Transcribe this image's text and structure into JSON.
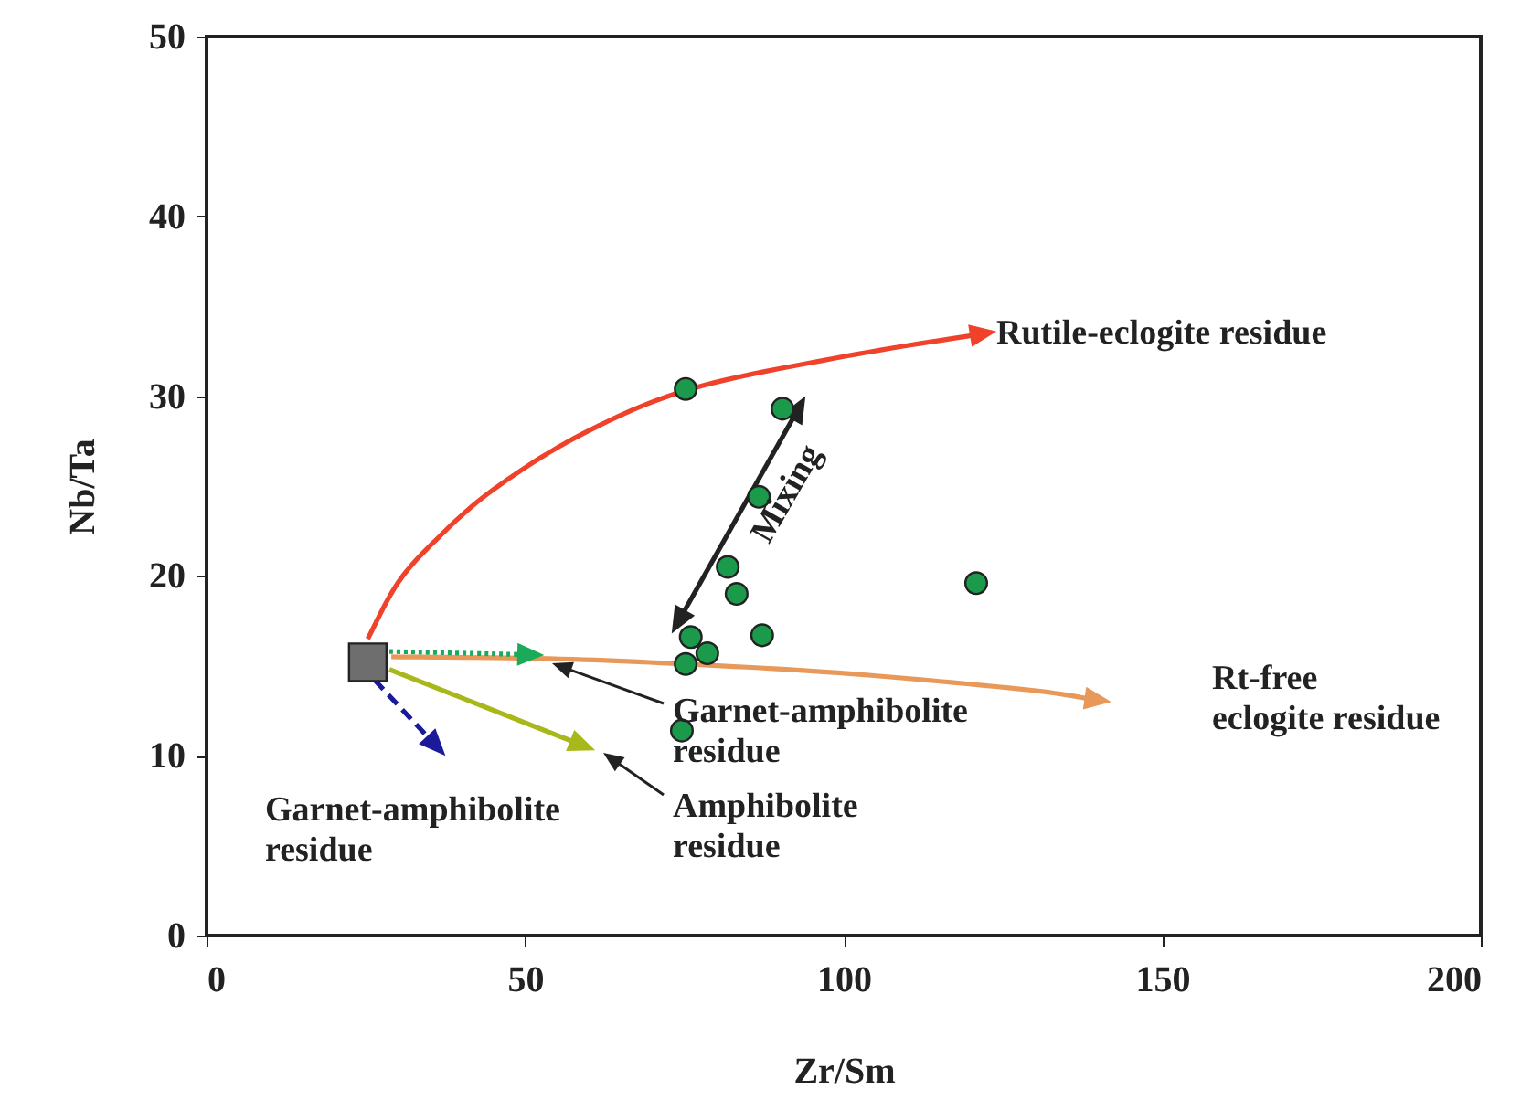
{
  "chart_data": {
    "type": "scatter",
    "xlabel": "Zr/Sm",
    "ylabel": "Nb/Ta",
    "xlim": [
      0,
      200
    ],
    "xticks": [
      0,
      50,
      100,
      150,
      200
    ],
    "ylim": [
      0,
      50
    ],
    "yticks": [
      0,
      10,
      20,
      30,
      40,
      50
    ],
    "grid": false,
    "series": [
      {
        "marker": "circle",
        "color": "#1a9a4a",
        "x": [
          75.2,
          90.4,
          86.7,
          81.8,
          83.2,
          120.8,
          76.0,
          87.2,
          75.2,
          78.6,
          74.6
        ],
        "values": [
          30.4,
          29.3,
          24.4,
          20.5,
          19.0,
          19.6,
          16.6,
          16.7,
          15.1,
          15.7,
          11.4
        ]
      },
      {
        "marker": "square",
        "color": "#6e6e6e",
        "x": [
          25.3
        ],
        "values": [
          15.2
        ]
      }
    ],
    "annotations": [
      "Rutile-eclogite residue",
      "Rt-free\neclogite residue",
      "Garnet-amphibolite\nresidue",
      "Amphibolite\nresidue",
      "Garnet-amphibolite\nresidue",
      "Mixing"
    ]
  }
}
